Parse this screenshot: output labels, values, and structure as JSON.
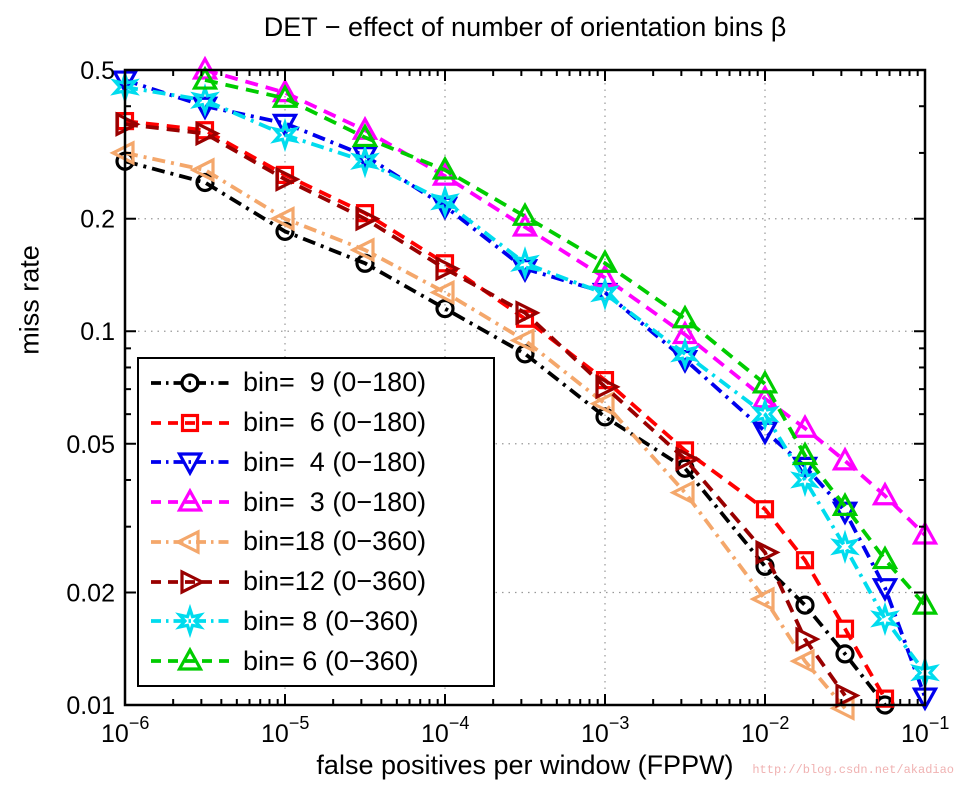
{
  "figure": {
    "watermark": "http://blog.csdn.net/akadiao"
  },
  "chart_data": {
    "type": "line",
    "title": "DET − effect of number of orientation bins β",
    "xlabel": "false positives per window (FPPW)",
    "ylabel": "miss rate",
    "x_scale": "log",
    "y_scale": "log",
    "xlim": [
      1e-06,
      0.1
    ],
    "ylim": [
      0.01,
      0.5
    ],
    "x_tick_exponents": [
      -6,
      -5,
      -4,
      -3,
      -2,
      -1
    ],
    "y_tick_values": [
      0.5,
      0.2,
      0.1,
      0.05,
      0.02,
      0.01
    ],
    "y_tick_labels": [
      "0.5",
      "0.2",
      "0.1",
      "0.05",
      "0.02",
      "0.01"
    ],
    "grid": true,
    "legend_position": "lower-left",
    "log10_fppw": [
      -6,
      -5.5,
      -5,
      -4.5,
      -4,
      -3.5,
      -3,
      -2.5,
      -2,
      -1.75,
      -1.5,
      -1.25,
      -1
    ],
    "series": [
      {
        "name": "bin9-0-180",
        "label": "bin=  9 (0−180)",
        "color": "#000000",
        "marker": "circle",
        "linestyle": "dashdot",
        "miss_rate": [
          0.285,
          0.25,
          0.185,
          0.152,
          0.115,
          0.087,
          0.059,
          0.043,
          0.0235,
          0.0185,
          0.0137,
          0.01,
          null
        ]
      },
      {
        "name": "bin6-0-180",
        "label": "bin=  6 (0−180)",
        "color": "#FF0000",
        "marker": "square",
        "linestyle": "dashed",
        "miss_rate": [
          0.365,
          0.345,
          0.262,
          0.207,
          0.152,
          0.108,
          0.074,
          0.048,
          0.0334,
          0.0244,
          0.016,
          0.0104,
          null
        ]
      },
      {
        "name": "bin4-0-180",
        "label": "bin=  4 (0−180)",
        "color": "#0000EE",
        "marker": "triangle-down",
        "linestyle": "dashdot",
        "miss_rate": [
          0.47,
          0.4,
          0.36,
          0.295,
          0.216,
          0.147,
          0.127,
          0.084,
          0.054,
          0.0435,
          0.033,
          0.0206,
          0.0105
        ]
      },
      {
        "name": "bin3-0-180",
        "label": "bin=  3 (0−180)",
        "color": "#FF00FF",
        "marker": "triangle-up",
        "linestyle": "dashed",
        "miss_rate": [
          null,
          0.5,
          0.435,
          0.345,
          0.26,
          0.19,
          0.139,
          0.098,
          0.066,
          0.055,
          0.045,
          0.0363,
          0.0285
        ]
      },
      {
        "name": "bin18-0-360",
        "label": "bin=18 (0−360)",
        "color": "#F4A76B",
        "marker": "triangle-left",
        "linestyle": "dashdot",
        "miss_rate": [
          0.3,
          0.27,
          0.2,
          0.165,
          0.127,
          0.0945,
          0.064,
          0.037,
          0.0192,
          0.0131,
          0.0098,
          null,
          null
        ]
      },
      {
        "name": "bin12-0-360",
        "label": "bin=12 (0−360)",
        "color": "#990000",
        "marker": "triangle-right",
        "linestyle": "dashed",
        "miss_rate": [
          0.358,
          0.338,
          0.255,
          0.2,
          0.147,
          0.112,
          0.071,
          0.0455,
          0.0256,
          0.015,
          0.0106,
          null,
          null
        ]
      },
      {
        "name": "bin8-0-360",
        "label": "bin= 8 (0−360)",
        "color": "#00DCEE",
        "marker": "hexagram",
        "linestyle": "dashdot",
        "miss_rate": [
          0.45,
          0.415,
          0.335,
          0.285,
          0.222,
          0.152,
          0.126,
          0.087,
          0.06,
          0.04,
          0.0265,
          0.017,
          0.0122
        ]
      },
      {
        "name": "bin6-0-360",
        "label": "bin= 6 (0−360)",
        "color": "#00CC00",
        "marker": "triangle-up",
        "linestyle": "dashed",
        "miss_rate": [
          null,
          0.47,
          0.42,
          0.33,
          0.27,
          0.203,
          0.152,
          0.108,
          0.0723,
          0.0465,
          0.034,
          0.0245,
          0.0185
        ]
      }
    ]
  }
}
